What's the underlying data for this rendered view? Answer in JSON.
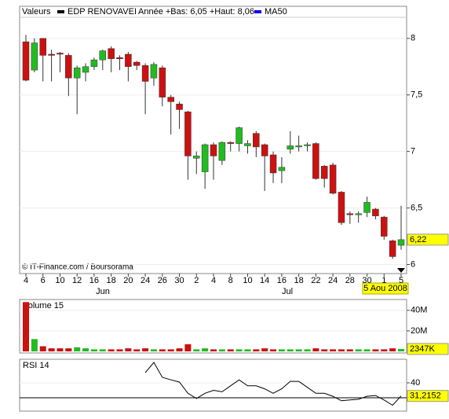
{
  "chart_data": [
    {
      "type": "candlestick",
      "header": {
        "label": "Valeurs",
        "name": "EDP RENOVAVEI",
        "name_color": "#000000",
        "range_text": "Année +Bas: 6,05 +Haut: 8,06",
        "overlay": "MA50",
        "overlay_color": "#0000ff"
      },
      "watermark": "© IT-Finance.com / Boursorama",
      "categories": [
        "4",
        null,
        "6",
        null,
        "10",
        null,
        "12",
        null,
        "16",
        null,
        "18",
        null,
        "20",
        null,
        "24",
        null,
        "26",
        null,
        "30",
        null,
        "2",
        null,
        "4",
        null,
        "8",
        null,
        "10",
        null,
        "14",
        null,
        "16",
        null,
        "18",
        null,
        "22",
        null,
        "24",
        null,
        "28",
        null,
        "30",
        null,
        "1",
        null,
        "5"
      ],
      "months": [
        "Jun",
        "Jul"
      ],
      "date_label": "5 Aou 2008",
      "open": [
        7.97,
        7.72,
        8.0,
        7.86,
        7.87,
        7.85,
        7.65,
        7.7,
        7.75,
        7.81,
        7.91,
        7.83,
        7.86,
        7.79,
        7.76,
        7.65,
        7.74,
        7.48,
        7.42,
        7.35,
        6.94,
        6.82,
        7.06,
        6.92,
        7.08,
        7.07,
        7.05,
        7.16,
        7.06,
        6.97,
        6.83,
        7.02,
        7.04,
        7.05,
        7.07,
        6.87,
        6.88,
        6.64,
        6.45,
        6.44,
        6.46,
        6.49,
        6.42,
        6.21,
        6.17
      ],
      "high": [
        8.03,
        8.0,
        8.0,
        7.9,
        7.88,
        7.87,
        7.76,
        7.78,
        7.83,
        7.9,
        7.93,
        7.85,
        7.88,
        7.8,
        7.78,
        7.79,
        7.76,
        7.5,
        7.44,
        7.36,
        7.0,
        7.07,
        7.08,
        7.09,
        7.09,
        7.22,
        7.1,
        7.18,
        7.07,
        7.0,
        6.95,
        7.18,
        7.14,
        7.08,
        7.08,
        6.88,
        6.9,
        6.65,
        6.47,
        6.47,
        6.6,
        6.5,
        6.43,
        6.22,
        6.52
      ],
      "low": [
        7.62,
        7.7,
        7.62,
        7.62,
        7.7,
        7.49,
        7.33,
        7.62,
        7.72,
        7.72,
        7.7,
        7.72,
        7.62,
        7.72,
        7.33,
        7.58,
        7.4,
        7.15,
        7.2,
        6.75,
        6.8,
        6.67,
        6.75,
        6.88,
        7.0,
        7.0,
        6.98,
        6.95,
        6.65,
        6.72,
        6.72,
        6.98,
        7.0,
        7.0,
        6.75,
        6.68,
        6.62,
        6.35,
        6.36,
        6.37,
        6.42,
        6.4,
        6.22,
        6.05,
        6.13
      ],
      "close": [
        7.63,
        7.96,
        7.85,
        7.85,
        7.86,
        7.65,
        7.74,
        7.75,
        7.81,
        7.89,
        7.82,
        7.82,
        7.75,
        7.76,
        7.62,
        7.77,
        7.48,
        7.44,
        7.37,
        6.96,
        6.96,
        7.06,
        6.96,
        7.08,
        7.07,
        7.21,
        7.07,
        7.04,
        6.96,
        6.81,
        6.86,
        7.05,
        7.05,
        7.06,
        6.76,
        6.76,
        6.63,
        6.37,
        6.44,
        6.45,
        6.55,
        6.43,
        6.25,
        6.07,
        6.22
      ],
      "close_labels": [
        null,
        null,
        null,
        null,
        null,
        null,
        null,
        null,
        null,
        null,
        null,
        null,
        null,
        null,
        null,
        null,
        null,
        null,
        null,
        null,
        null,
        null,
        null,
        null,
        null,
        null,
        null,
        null,
        null,
        null,
        null,
        null,
        null,
        null,
        null,
        null,
        null,
        null,
        null,
        null,
        null,
        null,
        null,
        null,
        "6,22"
      ],
      "up_color": "#22bb22",
      "down_color": "#cc1111",
      "ylim": [
        5.92,
        8.27
      ],
      "yticks": [
        8,
        {
          "value": 7.5,
          "label": "7,5"
        },
        7,
        {
          "value": 6.5,
          "label": "6,5"
        },
        6
      ]
    },
    {
      "type": "bar",
      "title": "Volume 15",
      "values": [
        48,
        12,
        5,
        3,
        3,
        3,
        4,
        3,
        2,
        2,
        2,
        2,
        3,
        2,
        3,
        2,
        2,
        2,
        3,
        7,
        2,
        3,
        2,
        2,
        2,
        2,
        2,
        2,
        3,
        2,
        2,
        2,
        2,
        2,
        3,
        2,
        2,
        2,
        2,
        2,
        2,
        2,
        2,
        3,
        2.347
      ],
      "value_labels": [
        null,
        null,
        null,
        null,
        null,
        null,
        null,
        null,
        null,
        null,
        null,
        null,
        null,
        null,
        null,
        null,
        null,
        null,
        null,
        null,
        null,
        null,
        null,
        null,
        null,
        null,
        null,
        null,
        null,
        null,
        null,
        null,
        null,
        null,
        null,
        null,
        null,
        null,
        null,
        null,
        null,
        null,
        null,
        null,
        "2347K"
      ],
      "ylim": [
        0,
        49
      ],
      "yticks": [
        {
          "value": 40,
          "label": "40M"
        },
        {
          "value": 20,
          "label": "20M"
        }
      ]
    },
    {
      "type": "line",
      "title": "RSI 14",
      "color": "#000000",
      "values": [
        null,
        null,
        null,
        null,
        null,
        null,
        null,
        null,
        null,
        null,
        null,
        null,
        null,
        null,
        46.8,
        53.7,
        43.7,
        42,
        40.5,
        33,
        29.5,
        33,
        35,
        34,
        38,
        42,
        38,
        38,
        36,
        33,
        36,
        41,
        41,
        37,
        33,
        33,
        31,
        28,
        28.5,
        29,
        31,
        31.5,
        28.5,
        25,
        31.2152
      ],
      "value_labels": [
        null,
        null,
        null,
        null,
        null,
        null,
        null,
        null,
        null,
        null,
        null,
        null,
        null,
        null,
        null,
        null,
        null,
        null,
        null,
        null,
        null,
        null,
        null,
        null,
        null,
        null,
        null,
        null,
        null,
        null,
        null,
        null,
        null,
        null,
        null,
        null,
        null,
        null,
        null,
        null,
        null,
        null,
        null,
        null,
        "31,2152"
      ],
      "hline": 30,
      "ylim": [
        22.1,
        54.2
      ],
      "yticks": [
        40
      ]
    }
  ]
}
